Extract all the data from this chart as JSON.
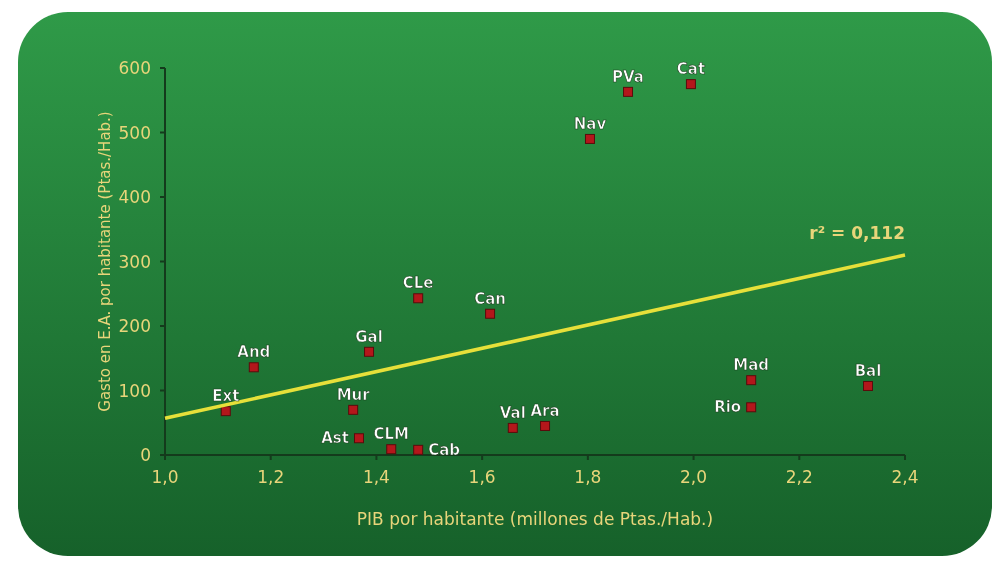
{
  "chart_data": {
    "type": "scatter",
    "xlabel": "PIB por habitante (millones de Ptas./Hab.)",
    "ylabel": "Gasto en E.A. por habitante (Ptas./Hab.)",
    "xlim": [
      1.0,
      2.4
    ],
    "ylim": [
      0,
      600
    ],
    "xticks": [
      {
        "value": 1.0,
        "label": "1,0"
      },
      {
        "value": 1.2,
        "label": "1,2"
      },
      {
        "value": 1.4,
        "label": "1,4"
      },
      {
        "value": 1.6,
        "label": "1,6"
      },
      {
        "value": 1.8,
        "label": "1,8"
      },
      {
        "value": 2.0,
        "label": "2,0"
      },
      {
        "value": 2.2,
        "label": "2,2"
      },
      {
        "value": 2.4,
        "label": "2,4"
      }
    ],
    "yticks": [
      0,
      100,
      200,
      300,
      400,
      500,
      600
    ],
    "grid": false,
    "series": [
      {
        "marker": "square",
        "color": "#b3171b",
        "x": [
          1.115,
          1.168,
          1.356,
          1.367,
          1.386,
          1.428,
          1.479,
          1.479,
          1.615,
          1.658,
          1.719,
          1.804,
          1.876,
          1.995,
          2.109,
          2.109,
          2.33
        ],
        "values": [
          68,
          136,
          70,
          26,
          160,
          9,
          243,
          8,
          219,
          42,
          45,
          490,
          563,
          575,
          116,
          74,
          107
        ]
      },
      {
        "type": "line",
        "marker": "none",
        "color": "#e6e03a",
        "x": [
          1.0,
          2.4
        ],
        "values": [
          57,
          310
        ]
      }
    ],
    "annotations": [
      {
        "text": "Ext",
        "x": 1.115,
        "y": 68
      },
      {
        "text": "And",
        "x": 1.168,
        "y": 136
      },
      {
        "text": "Mur",
        "x": 1.356,
        "y": 70
      },
      {
        "text": "Ast",
        "x": 1.367,
        "y": 26
      },
      {
        "text": "Gal",
        "x": 1.386,
        "y": 160
      },
      {
        "text": "CLM",
        "x": 1.428,
        "y": 9
      },
      {
        "text": "CLe",
        "x": 1.479,
        "y": 243
      },
      {
        "text": "Cab",
        "x": 1.479,
        "y": 8
      },
      {
        "text": "Can",
        "x": 1.615,
        "y": 219
      },
      {
        "text": "Val",
        "x": 1.658,
        "y": 42
      },
      {
        "text": "Ara",
        "x": 1.719,
        "y": 45
      },
      {
        "text": "Nav",
        "x": 1.804,
        "y": 490
      },
      {
        "text": "PVa",
        "x": 1.876,
        "y": 563
      },
      {
        "text": "Cat",
        "x": 1.995,
        "y": 575
      },
      {
        "text": "Mad",
        "x": 2.109,
        "y": 116
      },
      {
        "text": "Rio",
        "x": 2.109,
        "y": 74
      },
      {
        "text": "Bal",
        "x": 2.33,
        "y": 107
      },
      {
        "text": "r² = 0,112",
        "x": 2.4,
        "y": 310
      }
    ]
  }
}
